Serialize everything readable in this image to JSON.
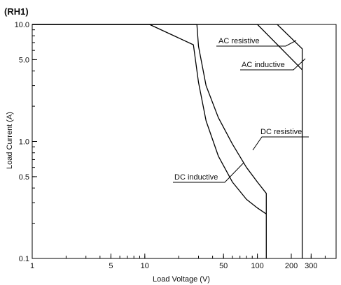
{
  "chart_data": {
    "type": "line",
    "title": "(RH1)",
    "xlabel": "Load Voltage (V)",
    "ylabel": "Load Current (A)",
    "xscale": "log",
    "yscale": "log",
    "xlim": [
      1,
      500
    ],
    "ylim": [
      0.1,
      10
    ],
    "x_ticks": [
      {
        "value": 1,
        "label": "1"
      },
      {
        "value": 5,
        "label": "5"
      },
      {
        "value": 10,
        "label": "10"
      },
      {
        "value": 50,
        "label": "50"
      },
      {
        "value": 100,
        "label": "100"
      },
      {
        "value": 200,
        "label": "200"
      },
      {
        "value": 300,
        "label": "300"
      }
    ],
    "y_ticks": [
      {
        "value": 10,
        "label": "10.0"
      },
      {
        "value": 5,
        "label": "5.0"
      },
      {
        "value": 1,
        "label": "1.0"
      },
      {
        "value": 0.5,
        "label": "0.5"
      },
      {
        "value": 0.1,
        "label": "0.1"
      }
    ],
    "grid": false,
    "series": [
      {
        "name": "AC resistive",
        "x": [
          1,
          150,
          250,
          250
        ],
        "y": [
          10,
          10,
          6.2,
          0.1
        ]
      },
      {
        "name": "AC inductive",
        "x": [
          1,
          100,
          250
        ],
        "y": [
          10,
          10,
          4.1
        ]
      },
      {
        "name": "DC resistive",
        "x": [
          1,
          29,
          30,
          35,
          45,
          60,
          80,
          100,
          120,
          120
        ],
        "y": [
          10,
          10,
          6.5,
          3.0,
          1.6,
          0.95,
          0.6,
          0.45,
          0.36,
          0.1
        ]
      },
      {
        "name": "DC inductive",
        "x": [
          1,
          11,
          27,
          30,
          35,
          45,
          60,
          80,
          100,
          120
        ],
        "y": [
          10,
          10,
          6.7,
          3.2,
          1.5,
          0.75,
          0.45,
          0.32,
          0.27,
          0.24
        ]
      }
    ]
  }
}
